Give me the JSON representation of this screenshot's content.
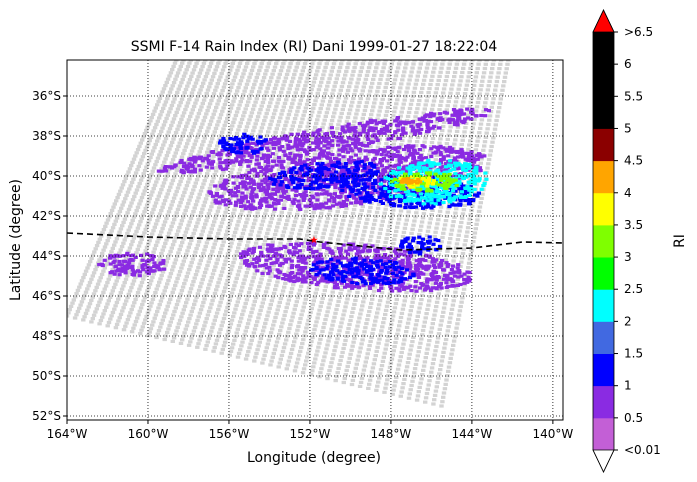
{
  "chart_data": {
    "type": "heatmap",
    "title": "SSMI F-14 Rain Index (RI) Dani 1999-01-27 18:22:04",
    "xlabel": "Longitude (degree)",
    "ylabel": "Latitude (degree)",
    "xlim": [
      -164,
      -139.5
    ],
    "ylim": [
      -52.2,
      -34.2
    ],
    "x_ticks": [
      {
        "value": -164,
        "label": "164°W"
      },
      {
        "value": -160,
        "label": "160°W"
      },
      {
        "value": -156,
        "label": "156°W"
      },
      {
        "value": -152,
        "label": "152°W"
      },
      {
        "value": -148,
        "label": "148°W"
      },
      {
        "value": -144,
        "label": "144°W"
      },
      {
        "value": -140,
        "label": "140°W"
      }
    ],
    "y_ticks": [
      {
        "value": -36,
        "label": "36°S"
      },
      {
        "value": -38,
        "label": "38°S"
      },
      {
        "value": -40,
        "label": "40°S"
      },
      {
        "value": -42,
        "label": "42°S"
      },
      {
        "value": -44,
        "label": "44°S"
      },
      {
        "value": -46,
        "label": "46°S"
      },
      {
        "value": -48,
        "label": "48°S"
      },
      {
        "value": -50,
        "label": "50°S"
      },
      {
        "value": -52,
        "label": "52°S"
      }
    ],
    "grid": true,
    "grid_style": "dotted",
    "swath_corners": [
      [
        -158.6,
        -34.2
      ],
      [
        -142.2,
        -34.2
      ],
      [
        -145.5,
        -51.5
      ],
      [
        -164,
        -47.0
      ]
    ],
    "swath_color": "#d3d3d3",
    "rain_regions": [
      {
        "lon": [
          -159.5,
          -143
        ],
        "lat": [
          -38.9,
          -37.6
        ],
        "tilt": -0.18,
        "class": 1
      },
      {
        "lon": [
          -157,
          -143.2
        ],
        "lat": [
          -41.5,
          -38.7
        ],
        "tilt": -0.12,
        "class": 1
      },
      {
        "lon": [
          -156.5,
          -154
        ],
        "lat": [
          -38.9,
          -37.9
        ],
        "tilt": 0,
        "class": 2
      },
      {
        "lon": [
          -154,
          -148.5
        ],
        "lat": [
          -40.6,
          -39.3
        ],
        "tilt": -0.1,
        "class": 2
      },
      {
        "lon": [
          -150.5,
          -143.5
        ],
        "lat": [
          -41.6,
          -40.0
        ],
        "tilt": 0.05,
        "class": 2
      },
      {
        "lon": [
          -148.5,
          -143.2
        ],
        "lat": [
          -41.4,
          -39.2
        ],
        "tilt": -0.05,
        "class": 4
      },
      {
        "lon": [
          -148.0,
          -144.5
        ],
        "lat": [
          -40.8,
          -39.8
        ],
        "tilt": 0,
        "class": 6
      },
      {
        "lon": [
          -147.8,
          -145.8
        ],
        "lat": [
          -40.6,
          -40.0
        ],
        "tilt": 0,
        "class": 7
      },
      {
        "lon": [
          -147.5,
          -146.5
        ],
        "lat": [
          -40.4,
          -40.1
        ],
        "tilt": 0,
        "class": 8
      },
      {
        "lon": [
          -155.5,
          -144
        ],
        "lat": [
          -45.7,
          -43.4
        ],
        "tilt": 0.08,
        "class": 1
      },
      {
        "lon": [
          -152,
          -146.8
        ],
        "lat": [
          -45.4,
          -44.1
        ],
        "tilt": 0.05,
        "class": 2
      },
      {
        "lon": [
          -147.6,
          -145.5
        ],
        "lat": [
          -43.9,
          -43.0
        ],
        "tilt": 0,
        "class": 2
      },
      {
        "lon": [
          -162.5,
          -159
        ],
        "lat": [
          -45.0,
          -43.8
        ],
        "tilt": 0,
        "class": 1
      }
    ],
    "storm_track": {
      "lon": [
        -164,
        -160,
        -156,
        -152.5,
        -151.5,
        -149.5,
        -147.5,
        -144,
        -141.5,
        -139.5
      ],
      "lat": [
        -42.85,
        -43.05,
        -43.15,
        -43.15,
        -43.3,
        -43.5,
        -43.7,
        -43.6,
        -43.3,
        -43.35
      ],
      "color": "#000000",
      "style": "dashed"
    },
    "storm_center": {
      "lon": -151.8,
      "lat": -43.2,
      "color": "#ff0000",
      "marker": "star"
    },
    "colorbar": {
      "label": "RI",
      "tick_labels": [
        "<0.01",
        "0.5",
        "1",
        "1.5",
        "2",
        "2.5",
        "3",
        "3.5",
        "4",
        "4.5",
        "5",
        "5.5",
        "6",
        ">6.5"
      ],
      "colors": [
        "#c35fd6",
        "#8a2be2",
        "#0000ff",
        "#4169e1",
        "#00ffff",
        "#00ff00",
        "#7fff00",
        "#ffff00",
        "#ffa500",
        "#8b0000",
        "#000000",
        "#000000",
        "#000000"
      ],
      "under_color": "#ffffff",
      "over_color": "#ff0000"
    }
  }
}
